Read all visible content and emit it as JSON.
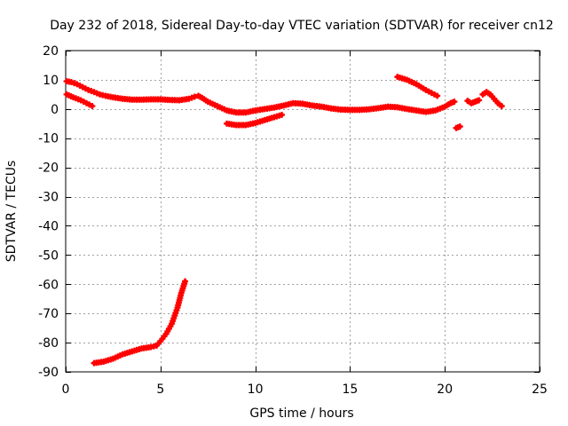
{
  "chart_data": {
    "type": "scatter",
    "title": "Day 232 of 2018, Sidereal Day-to-day VTEC variation (SDTVAR) for receiver cn12",
    "xlabel": "GPS time / hours",
    "ylabel": "SDTVAR / TECUs",
    "xlim": [
      0,
      25
    ],
    "ylim": [
      -90,
      20
    ],
    "xticks": [
      0,
      5,
      10,
      15,
      20,
      25
    ],
    "yticks": [
      -90,
      -80,
      -70,
      -60,
      -50,
      -40,
      -30,
      -20,
      -10,
      0,
      10,
      20
    ],
    "grid": true,
    "legend": "none",
    "marker": "+",
    "series": [
      {
        "name": "SDTVAR",
        "color": "#ff0000",
        "tracks": [
          [
            [
              0.05,
              9.5
            ],
            [
              0.3,
              9.2
            ],
            [
              0.6,
              8.5
            ],
            [
              0.9,
              7.5
            ],
            [
              1.2,
              6.5
            ],
            [
              1.5,
              5.8
            ],
            [
              1.8,
              5.0
            ],
            [
              2.1,
              4.5
            ],
            [
              2.5,
              4.0
            ],
            [
              3.0,
              3.5
            ],
            [
              3.5,
              3.2
            ],
            [
              4.0,
              3.2
            ],
            [
              4.5,
              3.3
            ],
            [
              5.0,
              3.3
            ],
            [
              5.5,
              3.1
            ],
            [
              6.0,
              3.0
            ],
            [
              6.5,
              3.5
            ],
            [
              6.8,
              4.2
            ],
            [
              7.0,
              4.5
            ],
            [
              7.2,
              3.8
            ],
            [
              7.5,
              2.5
            ],
            [
              8.0,
              1.0
            ],
            [
              8.5,
              -0.5
            ],
            [
              9.0,
              -1.2
            ],
            [
              9.5,
              -1.2
            ],
            [
              10.0,
              -0.5
            ],
            [
              10.5,
              0.0
            ],
            [
              11.0,
              0.5
            ],
            [
              11.5,
              1.2
            ],
            [
              12.0,
              2.0
            ],
            [
              12.5,
              1.8
            ],
            [
              13.0,
              1.2
            ],
            [
              13.5,
              0.8
            ],
            [
              14.0,
              0.2
            ],
            [
              14.5,
              -0.2
            ],
            [
              15.0,
              -0.3
            ],
            [
              15.5,
              -0.3
            ],
            [
              16.0,
              -0.1
            ],
            [
              16.5,
              0.3
            ],
            [
              17.0,
              0.8
            ],
            [
              17.5,
              0.6
            ],
            [
              18.0,
              0.0
            ],
            [
              18.5,
              -0.5
            ],
            [
              19.0,
              -1.0
            ],
            [
              19.5,
              -0.5
            ],
            [
              20.0,
              0.8
            ],
            [
              20.3,
              2.0
            ],
            [
              20.5,
              2.5
            ]
          ],
          [
            [
              0.05,
              5.0
            ],
            [
              0.4,
              4.0
            ],
            [
              0.8,
              3.0
            ],
            [
              1.1,
              2.0
            ],
            [
              1.4,
              1.0
            ]
          ],
          [
            [
              1.5,
              -87.0
            ],
            [
              2.0,
              -86.5
            ],
            [
              2.5,
              -85.5
            ],
            [
              3.0,
              -84.0
            ],
            [
              3.5,
              -83.0
            ],
            [
              4.0,
              -82.0
            ],
            [
              4.5,
              -81.5
            ],
            [
              4.8,
              -81.0
            ],
            [
              5.0,
              -79.5
            ],
            [
              5.3,
              -77.0
            ],
            [
              5.6,
              -73.5
            ],
            [
              5.9,
              -68.0
            ],
            [
              6.1,
              -63.0
            ],
            [
              6.3,
              -59.0
            ]
          ],
          [
            [
              8.5,
              -5.0
            ],
            [
              9.0,
              -5.5
            ],
            [
              9.5,
              -5.5
            ],
            [
              10.0,
              -4.8
            ],
            [
              10.5,
              -3.8
            ],
            [
              11.0,
              -2.8
            ],
            [
              11.4,
              -2.0
            ]
          ],
          [
            [
              17.5,
              11.0
            ],
            [
              18.0,
              10.0
            ],
            [
              18.5,
              8.5
            ],
            [
              19.0,
              6.5
            ],
            [
              19.3,
              5.5
            ],
            [
              19.6,
              4.5
            ]
          ],
          [
            [
              20.6,
              -6.5
            ],
            [
              20.8,
              -6.0
            ]
          ],
          [
            [
              21.2,
              2.8
            ],
            [
              21.4,
              2.0
            ],
            [
              21.6,
              2.5
            ],
            [
              21.8,
              3.0
            ]
          ],
          [
            [
              22.0,
              5.0
            ],
            [
              22.2,
              5.8
            ],
            [
              22.4,
              5.0
            ],
            [
              22.6,
              3.5
            ],
            [
              22.8,
              2.0
            ],
            [
              23.0,
              1.0
            ]
          ]
        ]
      }
    ]
  }
}
